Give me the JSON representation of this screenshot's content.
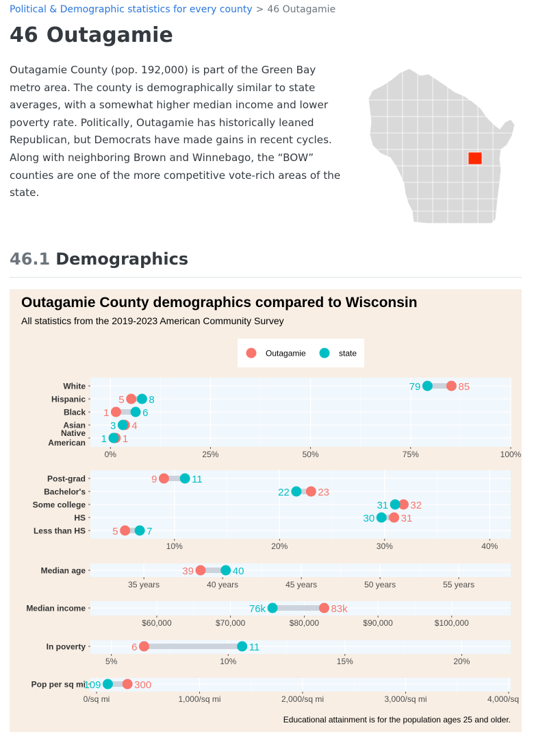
{
  "breadcrumb": {
    "parent": "Political & Demographic statistics for every county",
    "separator": ">",
    "current": "46  Outagamie"
  },
  "page": {
    "number": "46",
    "title": "Outagamie",
    "intro": "Outagamie County (pop. 192,000) is part of the Green Bay metro area. The county is demographically similar to state averages, with a somewhat higher median income and lower poverty rate. Politically, Outagamie has historically leaned Republican, but Democrats have made gains in recent cycles. Along with neighboring Brown and Winnebago, the “BOW” counties are one of the more competitive vote-rich areas of the state."
  },
  "map": {
    "state_fill": "#d9d9d9",
    "highlight_fill": "#ff2a00"
  },
  "section": {
    "number": "46.1",
    "title": "Demographics"
  },
  "chart_data": {
    "type": "dot",
    "title": "Outagamie County demographics compared to Wisconsin",
    "subtitle": "All statistics from the 2019-2023 American Community Survey",
    "caption": "Educational attainment is for the population ages 25 and older.",
    "legend": {
      "placement": "top",
      "entries": [
        {
          "name": "Outagamie",
          "color": "#f8766d"
        },
        {
          "name": "state",
          "color": "#00bfc4"
        }
      ]
    },
    "panels": [
      {
        "id": "race",
        "range": [
          -5,
          100
        ],
        "ticks": [
          0,
          25,
          50,
          75,
          100
        ],
        "tick_labels": [
          "0%",
          "25%",
          "50%",
          "75%",
          "100%"
        ],
        "rows": [
          {
            "label": "White",
            "county": 85.2,
            "state": 79.2,
            "county_label": "85",
            "state_label": "79"
          },
          {
            "label": "Hispanic",
            "county": 5.2,
            "state": 7.9,
            "county_label": "5",
            "state_label": "8"
          },
          {
            "label": "Black",
            "county": 1.4,
            "state": 6.3,
            "county_label": "1",
            "state_label": "6"
          },
          {
            "label": "Asian",
            "county": 3.6,
            "state": 3.1,
            "county_label": "4",
            "state_label": "3"
          },
          {
            "label": "Native American",
            "county": 1.3,
            "state": 0.8,
            "county_label": "1",
            "state_label": "1"
          }
        ]
      },
      {
        "id": "education",
        "range": [
          2,
          42
        ],
        "ticks": [
          10,
          20,
          30,
          40
        ],
        "tick_labels": [
          "10%",
          "20%",
          "30%",
          "40%"
        ],
        "rows": [
          {
            "label": "Post-grad",
            "county": 9.0,
            "state": 11.0,
            "county_label": "9",
            "state_label": "11"
          },
          {
            "label": "Bachelor's",
            "county": 23.0,
            "state": 21.6,
            "county_label": "23",
            "state_label": "22"
          },
          {
            "label": "Some college",
            "county": 31.8,
            "state": 31.0,
            "county_label": "32",
            "state_label": "31"
          },
          {
            "label": "HS",
            "county": 30.9,
            "state": 29.7,
            "county_label": "31",
            "state_label": "30"
          },
          {
            "label": "Less than HS",
            "county": 5.3,
            "state": 6.7,
            "county_label": "5",
            "state_label": "7"
          }
        ]
      },
      {
        "id": "age",
        "range": [
          31.6,
          58.3
        ],
        "ticks": [
          35,
          40,
          45,
          50,
          55
        ],
        "tick_labels": [
          "35 years",
          "40 years",
          "45 years",
          "50 years",
          "55 years"
        ],
        "rows": [
          {
            "label": "Median age",
            "county": 38.6,
            "state": 40.2,
            "county_label": "39",
            "state_label": "40"
          }
        ]
      },
      {
        "id": "income",
        "range": [
          51000,
          108000
        ],
        "ticks": [
          60000,
          70000,
          80000,
          90000,
          100000
        ],
        "tick_labels": [
          "$60,000",
          "$70,000",
          "$80,000",
          "$90,000",
          "$100,000"
        ],
        "rows": [
          {
            "label": "Median income",
            "county": 82700,
            "state": 75700,
            "county_label": "83k",
            "state_label": "76k"
          }
        ]
      },
      {
        "id": "poverty",
        "range": [
          4.1,
          22.1
        ],
        "ticks": [
          5,
          10,
          15,
          20
        ],
        "tick_labels": [
          "5%",
          "10%",
          "15%",
          "20%"
        ],
        "rows": [
          {
            "label": "In poverty",
            "county": 6.4,
            "state": 10.6,
            "county_label": "6",
            "state_label": "11"
          }
        ]
      },
      {
        "id": "density",
        "range": [
          -60,
          4020
        ],
        "ticks": [
          0,
          1000,
          2000,
          3000,
          4000
        ],
        "tick_labels": [
          "0/sq mi",
          "1,000/sq mi",
          "2,000/sq mi",
          "3,000/sq mi",
          "4,000/sq mi"
        ],
        "rows": [
          {
            "label": "Pop per sq mi",
            "county": 300,
            "state": 109,
            "county_label": "300",
            "state_label": "109"
          }
        ]
      }
    ]
  }
}
